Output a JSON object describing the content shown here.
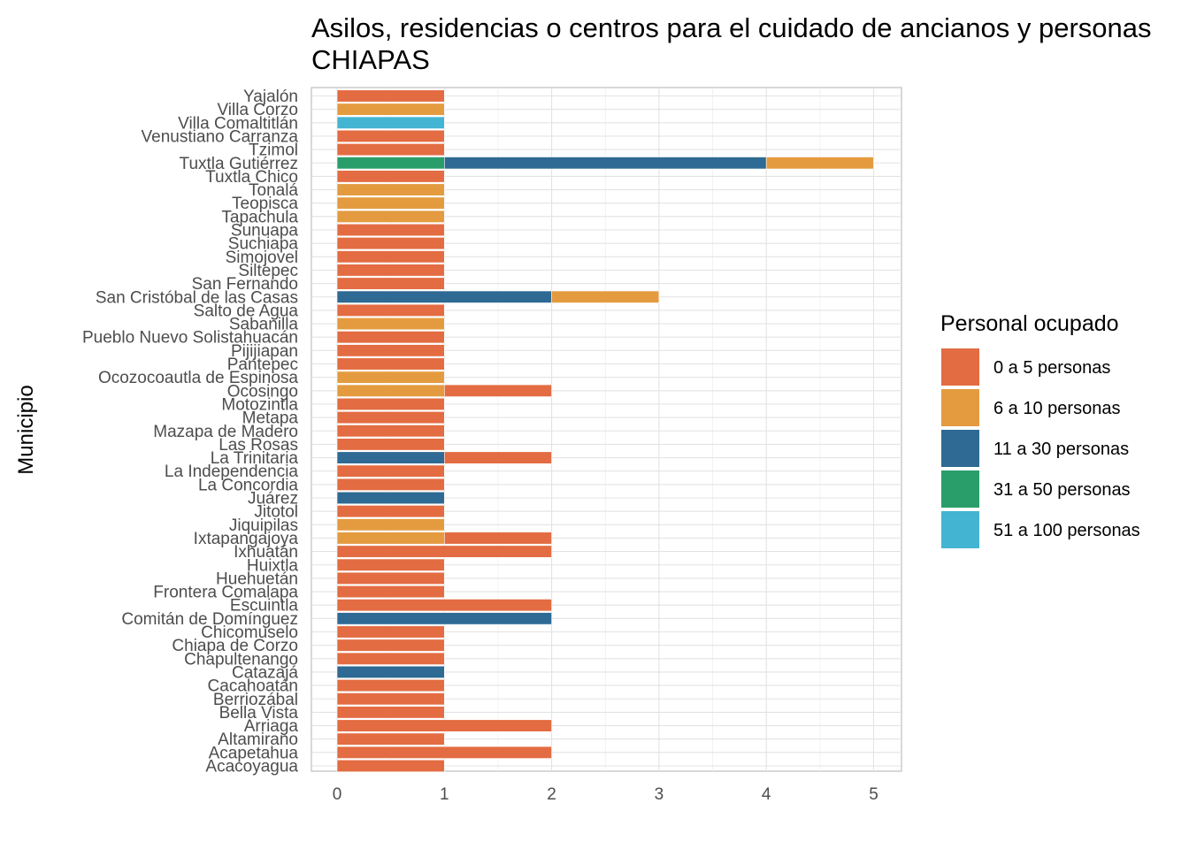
{
  "chart_data": {
    "type": "bar",
    "orientation": "horizontal",
    "stacked": true,
    "title_lines": [
      "Asilos, residencias o centros para el cuidado de ancianos y personas",
      "CHIAPAS"
    ],
    "xlabel": "",
    "ylabel": "Municipio",
    "xlim": [
      0,
      5
    ],
    "x_ticks": [
      "0",
      "1",
      "2",
      "3",
      "4",
      "5"
    ],
    "grid": true,
    "legend_position": "right",
    "legend": {
      "title": "Personal ocupado",
      "entries": [
        {
          "label": "0 a 5 personas",
          "color": "#E36C42"
        },
        {
          "label": "6 a 10 personas",
          "color": "#E49B3F"
        },
        {
          "label": "11 a 30 personas",
          "color": "#2E6A93"
        },
        {
          "label": "31 a 50 personas",
          "color": "#2A9E6A"
        },
        {
          "label": "51 a 100 personas",
          "color": "#44B4D3"
        }
      ]
    },
    "categories": [
      "Yajalón",
      "Villa Corzo",
      "Villa Comaltitlán",
      "Venustiano Carranza",
      "Tzimol",
      "Tuxtla Gutiérrez",
      "Tuxtla Chico",
      "Tonalá",
      "Teopisca",
      "Tapachula",
      "Sunuapa",
      "Suchiapa",
      "Simojovel",
      "Siltepec",
      "San Fernando",
      "San Cristóbal de las Casas",
      "Salto de Agua",
      "Sabanilla",
      "Pueblo Nuevo Solistahuacán",
      "Pijijiapan",
      "Pantepec",
      "Ocozocoautla de Espinosa",
      "Ocosingo",
      "Motozintla",
      "Metapa",
      "Mazapa de Madero",
      "Las Rosas",
      "La Trinitaria",
      "La Independencia",
      "La Concordia",
      "Juárez",
      "Jitotol",
      "Jiquipilas",
      "Ixtapangajoya",
      "Ixhuatán",
      "Huixtla",
      "Huehuetán",
      "Frontera Comalapa",
      "Escuintla",
      "Comitán de Domínguez",
      "Chicomuselo",
      "Chiapa de Corzo",
      "Chapultenango",
      "Catazajá",
      "Cacahoatán",
      "Berriozábal",
      "Bella Vista",
      "Arriaga",
      "Altamirano",
      "Acapetahua",
      "Acacoyagua"
    ],
    "series": [
      {
        "name": "0 a 5 personas",
        "values": [
          1,
          0,
          0,
          1,
          1,
          0,
          1,
          0,
          0,
          0,
          1,
          1,
          1,
          1,
          1,
          0,
          1,
          0,
          1,
          1,
          1,
          0,
          1,
          1,
          1,
          1,
          1,
          1,
          1,
          1,
          0,
          1,
          0,
          1,
          2,
          1,
          1,
          1,
          2,
          0,
          1,
          1,
          1,
          0,
          1,
          1,
          1,
          2,
          1,
          2,
          1
        ]
      },
      {
        "name": "6 a 10 personas",
        "values": [
          0,
          1,
          0,
          0,
          0,
          1,
          0,
          1,
          1,
          1,
          0,
          0,
          0,
          0,
          0,
          1,
          0,
          1,
          0,
          0,
          0,
          1,
          1,
          0,
          0,
          0,
          0,
          0,
          0,
          0,
          0,
          0,
          1,
          1,
          0,
          0,
          0,
          0,
          0,
          0,
          0,
          0,
          0,
          0,
          0,
          0,
          0,
          0,
          0,
          0,
          0
        ]
      },
      {
        "name": "11 a 30 personas",
        "values": [
          0,
          0,
          0,
          0,
          0,
          3,
          0,
          0,
          0,
          0,
          0,
          0,
          0,
          0,
          0,
          2,
          0,
          0,
          0,
          0,
          0,
          0,
          0,
          0,
          0,
          0,
          0,
          1,
          0,
          0,
          1,
          0,
          0,
          0,
          0,
          0,
          0,
          0,
          0,
          2,
          0,
          0,
          0,
          1,
          0,
          0,
          0,
          0,
          0,
          0,
          0
        ]
      },
      {
        "name": "31 a 50 personas",
        "values": [
          0,
          0,
          0,
          0,
          0,
          1,
          0,
          0,
          0,
          0,
          0,
          0,
          0,
          0,
          0,
          0,
          0,
          0,
          0,
          0,
          0,
          0,
          0,
          0,
          0,
          0,
          0,
          0,
          0,
          0,
          0,
          0,
          0,
          0,
          0,
          0,
          0,
          0,
          0,
          0,
          0,
          0,
          0,
          0,
          0,
          0,
          0,
          0,
          0,
          0,
          0
        ]
      },
      {
        "name": "51 a 100 personas",
        "values": [
          0,
          0,
          1,
          0,
          0,
          0,
          0,
          0,
          0,
          0,
          0,
          0,
          0,
          0,
          0,
          0,
          0,
          0,
          0,
          0,
          0,
          0,
          0,
          0,
          0,
          0,
          0,
          0,
          0,
          0,
          0,
          0,
          0,
          0,
          0,
          0,
          0,
          0,
          0,
          0,
          0,
          0,
          0,
          0,
          0,
          0,
          0,
          0,
          0,
          0,
          0
        ]
      }
    ],
    "stack_order": [
      [
        "0 a 5 personas"
      ],
      [
        "6 a 10 personas"
      ],
      [
        "51 a 100 personas"
      ],
      [
        "0 a 5 personas"
      ],
      [
        "0 a 5 personas"
      ],
      [
        "31 a 50 personas",
        "11 a 30 personas",
        "6 a 10 personas"
      ],
      [
        "0 a 5 personas"
      ],
      [
        "6 a 10 personas"
      ],
      [
        "6 a 10 personas"
      ],
      [
        "6 a 10 personas"
      ],
      [
        "0 a 5 personas"
      ],
      [
        "0 a 5 personas"
      ],
      [
        "0 a 5 personas"
      ],
      [
        "0 a 5 personas"
      ],
      [
        "0 a 5 personas"
      ],
      [
        "11 a 30 personas",
        "6 a 10 personas"
      ],
      [
        "0 a 5 personas"
      ],
      [
        "6 a 10 personas"
      ],
      [
        "0 a 5 personas"
      ],
      [
        "0 a 5 personas"
      ],
      [
        "0 a 5 personas"
      ],
      [
        "6 a 10 personas"
      ],
      [
        "6 a 10 personas",
        "0 a 5 personas"
      ],
      [
        "0 a 5 personas"
      ],
      [
        "0 a 5 personas"
      ],
      [
        "0 a 5 personas"
      ],
      [
        "0 a 5 personas"
      ],
      [
        "11 a 30 personas",
        "0 a 5 personas"
      ],
      [
        "0 a 5 personas"
      ],
      [
        "0 a 5 personas"
      ],
      [
        "11 a 30 personas"
      ],
      [
        "0 a 5 personas"
      ],
      [
        "6 a 10 personas"
      ],
      [
        "6 a 10 personas",
        "0 a 5 personas"
      ],
      [
        "0 a 5 personas"
      ],
      [
        "0 a 5 personas"
      ],
      [
        "0 a 5 personas"
      ],
      [
        "0 a 5 personas"
      ],
      [
        "0 a 5 personas"
      ],
      [
        "11 a 30 personas"
      ],
      [
        "0 a 5 personas"
      ],
      [
        "0 a 5 personas"
      ],
      [
        "0 a 5 personas"
      ],
      [
        "11 a 30 personas"
      ],
      [
        "0 a 5 personas"
      ],
      [
        "0 a 5 personas"
      ],
      [
        "0 a 5 personas"
      ],
      [
        "0 a 5 personas"
      ],
      [
        "0 a 5 personas"
      ],
      [
        "0 a 5 personas"
      ],
      [
        "0 a 5 personas"
      ]
    ]
  }
}
